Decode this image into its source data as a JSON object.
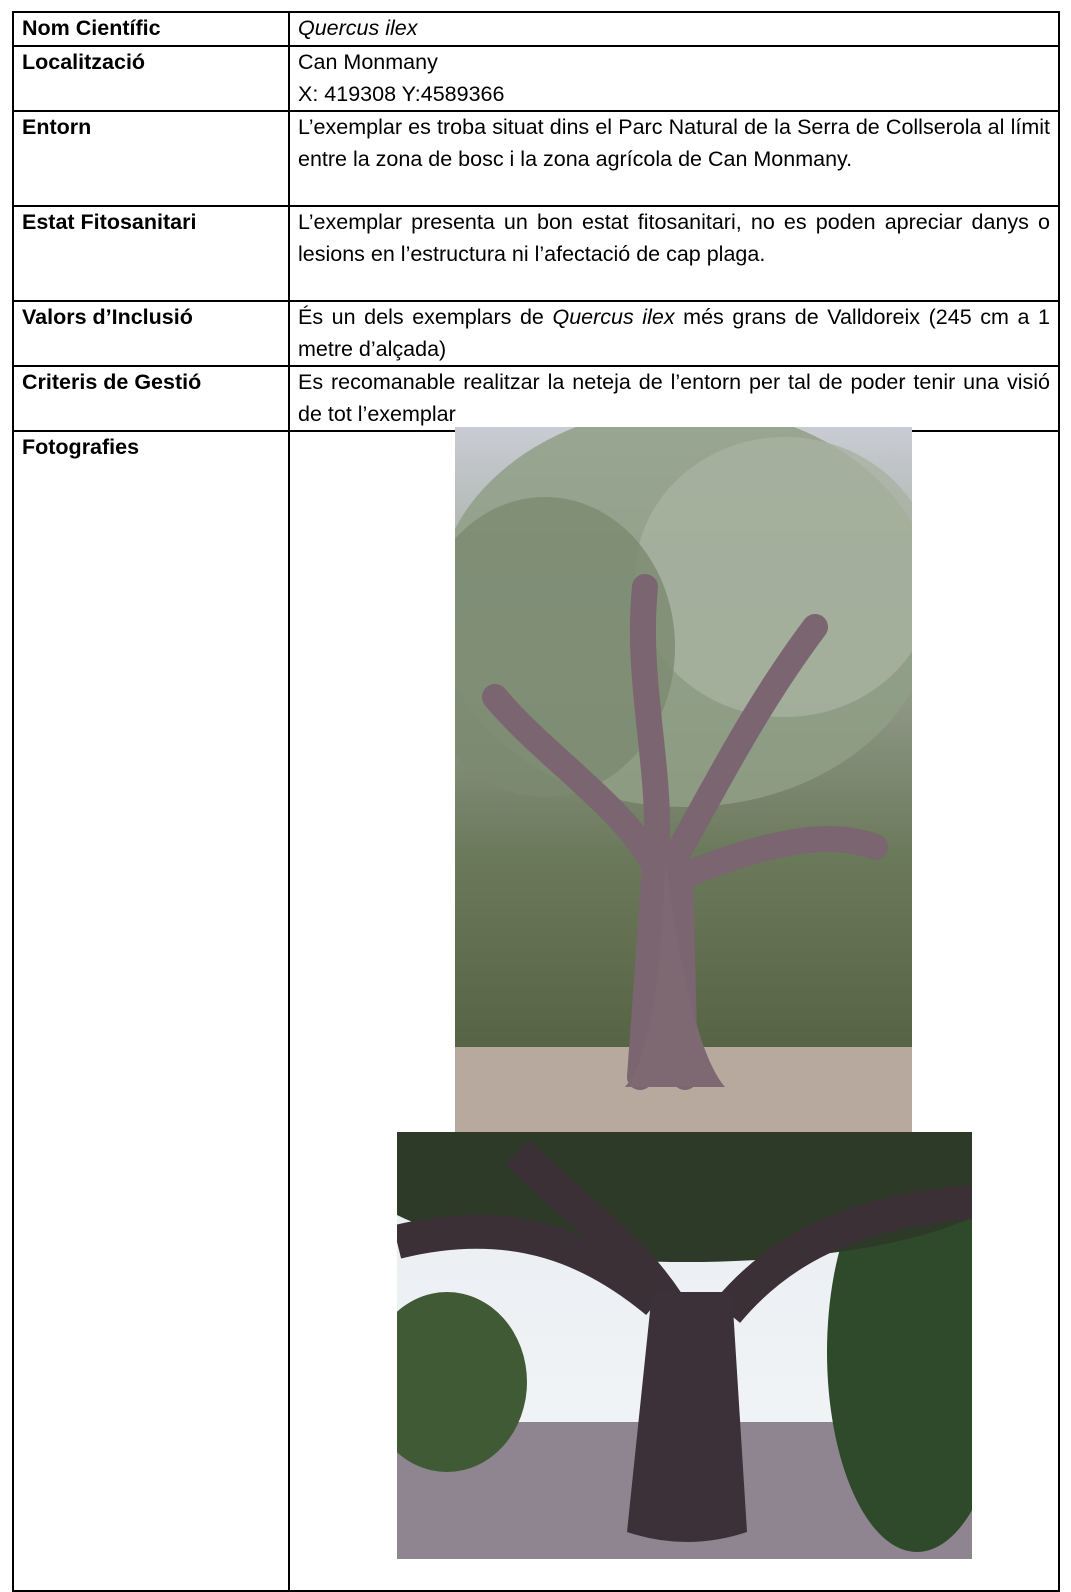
{
  "table": {
    "rows": [
      {
        "label": "Nom Científic",
        "text": "Quercus ilex"
      },
      {
        "label": "Localització",
        "lines": [
          "Can Monmany",
          "X: 419308 Y:4589366"
        ]
      },
      {
        "label": "Entorn",
        "text": "L’exemplar es troba situat dins el Parc Natural de la Serra de Collserola al límit entre la zona de bosc i la zona agrícola de Can Monmany."
      },
      {
        "label": "Estat Fitosanitari",
        "text": "L’exemplar presenta un bon estat fitosanitari, no es poden apreciar danys o lesions en l’estructura ni l’afectació de cap plaga."
      },
      {
        "label": "Valors d’Inclusió",
        "parts": [
          "És un dels exemplars de ",
          "Quercus ilex",
          " més grans de Valldoreix (245 cm a 1 metre d’alçada)"
        ]
      },
      {
        "label": "Criteris de Gestió",
        "text": "Es recomanable realitzar la neteja de l’entorn per tal de poder tenir una visió de tot l’exemplar"
      },
      {
        "label": "Fotografies"
      }
    ]
  }
}
